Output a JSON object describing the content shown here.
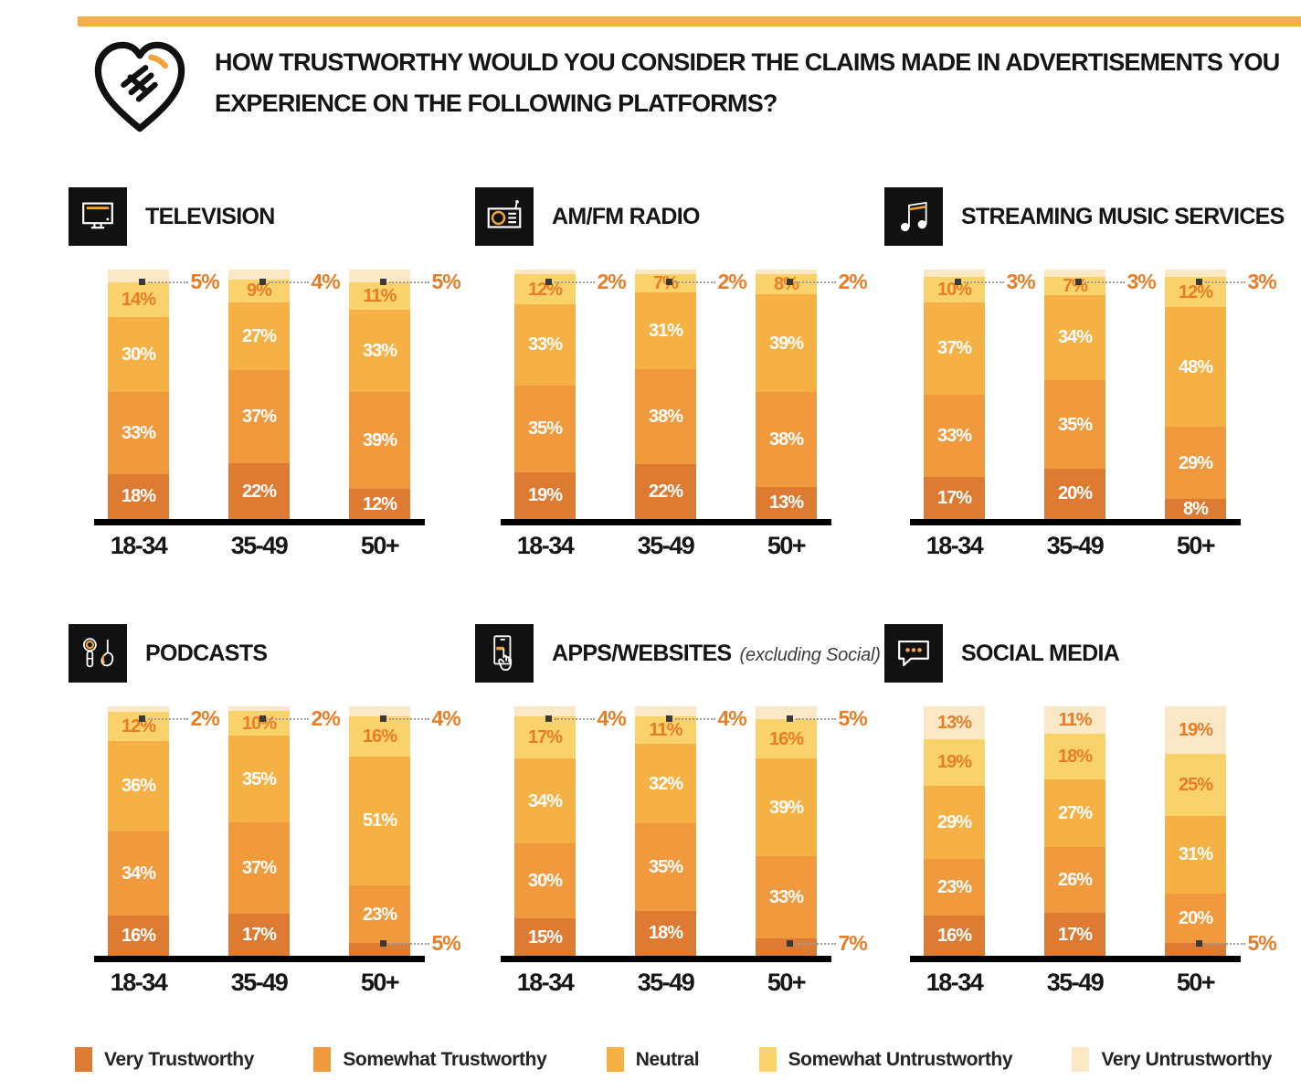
{
  "header": {
    "title_lines": [
      "HOW TRUSTWORTHY WOULD YOU CONSIDER THE CLAIMS MADE IN ADVERTISEMENTS YOU",
      "EXPERIENCE ON THE FOLLOWING PLATFORMS?"
    ],
    "icon": "handshake-heart-icon"
  },
  "colors": {
    "accent_bar": "#F2AE49",
    "icon_tile_background": "#111111",
    "icon_accent_orange": "#F2A33C",
    "axis_line": "#000000",
    "callout_text": "#E87D26",
    "callout_marker": "#3A3A3A",
    "leader_line": "#9E9E9E",
    "inside_label_white": "#FFFFFF",
    "inside_label_orange": "#E87D26"
  },
  "legend": {
    "items": [
      {
        "label": "Very Trustworthy",
        "color": "#DE7B33"
      },
      {
        "label": "Somewhat Trustworthy",
        "color": "#F19A3D"
      },
      {
        "label": "Neutral",
        "color": "#F6B145"
      },
      {
        "label": "Somewhat Untrustworthy",
        "color": "#FAD26B"
      },
      {
        "label": "Very Untrustworthy",
        "color": "#FAE8C6"
      }
    ]
  },
  "chart_data": [
    {
      "type": "bar",
      "stacked": true,
      "unit": "%",
      "ylim": [
        0,
        100
      ],
      "title": "TELEVISION",
      "subtitle": "",
      "icon": "television-icon",
      "categories": [
        "18-34",
        "35-49",
        "50+"
      ],
      "series": [
        {
          "name": "Very Trustworthy",
          "values": [
            18,
            22,
            12
          ]
        },
        {
          "name": "Somewhat Trustworthy",
          "values": [
            33,
            37,
            39
          ]
        },
        {
          "name": "Neutral",
          "values": [
            30,
            27,
            33
          ]
        },
        {
          "name": "Somewhat Untrustworthy",
          "values": [
            14,
            9,
            11
          ]
        },
        {
          "name": "Very Untrustworthy",
          "values": [
            5,
            4,
            5
          ]
        }
      ]
    },
    {
      "type": "bar",
      "stacked": true,
      "unit": "%",
      "ylim": [
        0,
        100
      ],
      "title": "AM/FM RADIO",
      "subtitle": "",
      "icon": "radio-icon",
      "categories": [
        "18-34",
        "35-49",
        "50+"
      ],
      "series": [
        {
          "name": "Very Trustworthy",
          "values": [
            19,
            22,
            13
          ]
        },
        {
          "name": "Somewhat Trustworthy",
          "values": [
            35,
            38,
            38
          ]
        },
        {
          "name": "Neutral",
          "values": [
            33,
            31,
            39
          ]
        },
        {
          "name": "Somewhat Untrustworthy",
          "values": [
            12,
            7,
            8
          ]
        },
        {
          "name": "Very Untrustworthy",
          "values": [
            2,
            2,
            2
          ]
        }
      ]
    },
    {
      "type": "bar",
      "stacked": true,
      "unit": "%",
      "ylim": [
        0,
        100
      ],
      "title": "STREAMING MUSIC SERVICES",
      "subtitle": "",
      "icon": "music-note-icon",
      "categories": [
        "18-34",
        "35-49",
        "50+"
      ],
      "series": [
        {
          "name": "Very Trustworthy",
          "values": [
            17,
            20,
            8
          ]
        },
        {
          "name": "Somewhat Trustworthy",
          "values": [
            33,
            35,
            29
          ]
        },
        {
          "name": "Neutral",
          "values": [
            37,
            34,
            48
          ]
        },
        {
          "name": "Somewhat Untrustworthy",
          "values": [
            10,
            7,
            12
          ]
        },
        {
          "name": "Very Untrustworthy",
          "values": [
            3,
            3,
            3
          ]
        }
      ]
    },
    {
      "type": "bar",
      "stacked": true,
      "unit": "%",
      "ylim": [
        0,
        100
      ],
      "title": "PODCASTS",
      "subtitle": "",
      "icon": "podcast-icon",
      "categories": [
        "18-34",
        "35-49",
        "50+"
      ],
      "series": [
        {
          "name": "Very Trustworthy",
          "values": [
            16,
            17,
            5
          ]
        },
        {
          "name": "Somewhat Trustworthy",
          "values": [
            34,
            37,
            23
          ]
        },
        {
          "name": "Neutral",
          "values": [
            36,
            35,
            51
          ]
        },
        {
          "name": "Somewhat Untrustworthy",
          "values": [
            12,
            10,
            16
          ]
        },
        {
          "name": "Very Untrustworthy",
          "values": [
            2,
            2,
            4
          ]
        }
      ]
    },
    {
      "type": "bar",
      "stacked": true,
      "unit": "%",
      "ylim": [
        0,
        100
      ],
      "title": "APPS/WEBSITES",
      "subtitle": "(excluding Social)",
      "icon": "apps-websites-icon",
      "categories": [
        "18-34",
        "35-49",
        "50+"
      ],
      "series": [
        {
          "name": "Very Trustworthy",
          "values": [
            15,
            18,
            7
          ]
        },
        {
          "name": "Somewhat Trustworthy",
          "values": [
            30,
            35,
            33
          ]
        },
        {
          "name": "Neutral",
          "values": [
            34,
            32,
            39
          ]
        },
        {
          "name": "Somewhat Untrustworthy",
          "values": [
            17,
            11,
            16
          ]
        },
        {
          "name": "Very Untrustworthy",
          "values": [
            4,
            4,
            5
          ]
        }
      ]
    },
    {
      "type": "bar",
      "stacked": true,
      "unit": "%",
      "ylim": [
        0,
        100
      ],
      "title": "SOCIAL MEDIA",
      "subtitle": "",
      "icon": "social-media-icon",
      "categories": [
        "18-34",
        "35-49",
        "50+"
      ],
      "series": [
        {
          "name": "Very Trustworthy",
          "values": [
            16,
            17,
            5
          ]
        },
        {
          "name": "Somewhat Trustworthy",
          "values": [
            23,
            26,
            20
          ]
        },
        {
          "name": "Neutral",
          "values": [
            29,
            27,
            31
          ]
        },
        {
          "name": "Somewhat Untrustworthy",
          "values": [
            19,
            18,
            25
          ]
        },
        {
          "name": "Very Untrustworthy",
          "values": [
            13,
            11,
            19
          ]
        }
      ]
    }
  ]
}
